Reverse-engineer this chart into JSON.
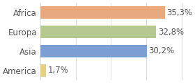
{
  "categories": [
    "America",
    "Asia",
    "Europa",
    "Africa"
  ],
  "values": [
    1.7,
    30.2,
    32.8,
    35.3
  ],
  "bar_colors": [
    "#e8d080",
    "#7b9fd4",
    "#b5c98e",
    "#e8a97e"
  ],
  "labels": [
    "1,7%",
    "30,2%",
    "32,8%",
    "35,3%"
  ],
  "xlim": [
    0,
    42
  ],
  "background_color": "#ffffff",
  "bar_height": 0.65,
  "label_fontsize": 8.5,
  "ytick_fontsize": 8.5
}
